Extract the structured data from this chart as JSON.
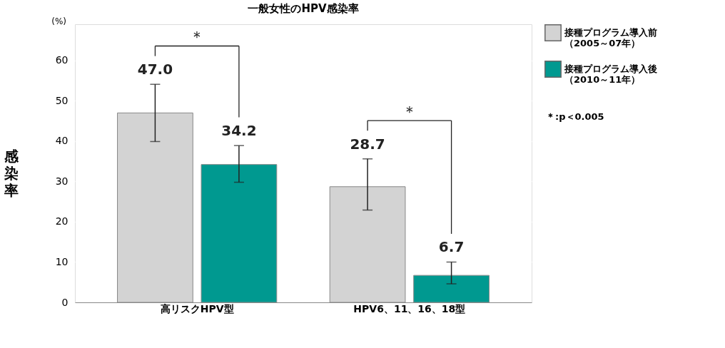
{
  "chart_data": {
    "type": "bar",
    "title": "一般女性のHPV感染率",
    "ylabel": "感染率",
    "categories": [
      "高リスクHPV型",
      "HPV6、11、16、18型"
    ],
    "series": [
      {
        "name": "接種プログラム導入前（2005～07年）",
        "color": "#d3d3d3",
        "values": [
          47.0,
          28.7
        ],
        "errors": [
          [
            39.9,
            54.1
          ],
          [
            22.9,
            35.6
          ]
        ],
        "value_labels": [
          "47.0",
          "28.7"
        ]
      },
      {
        "name": "接種プログラム導入後（2010～11年）",
        "color": "#009990",
        "values": [
          34.2,
          6.7
        ],
        "errors": [
          [
            29.8,
            38.9
          ],
          [
            4.6,
            10.0
          ]
        ],
        "value_labels": [
          "34.2",
          "6.7"
        ]
      }
    ],
    "annotations": [
      "(%)",
      "＊",
      "＊",
      "＊:p＜0.005"
    ],
    "ylim": [
      0,
      69
    ],
    "yticks": [
      0,
      10,
      20,
      30,
      40,
      50,
      60
    ],
    "grid": "y",
    "legend": "right"
  }
}
